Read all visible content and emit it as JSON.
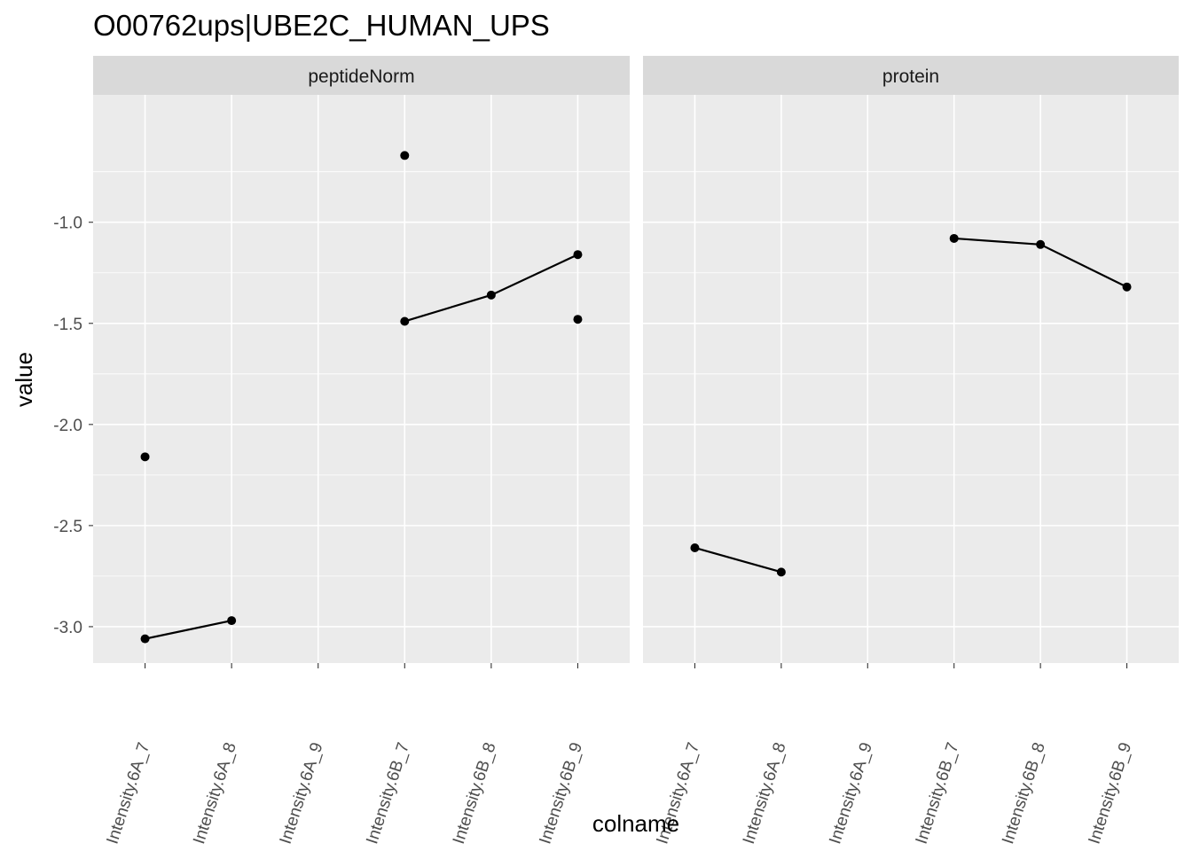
{
  "chart_data": {
    "type": "line",
    "title": "O00762ups|UBE2C_HUMAN_UPS",
    "xlabel": "colname",
    "ylabel": "value",
    "y_ticks": [
      "-1.0",
      "-1.5",
      "-2.0",
      "-2.5",
      "-3.0"
    ],
    "y_tick_values": [
      -1.0,
      -1.5,
      -2.0,
      -2.5,
      -3.0
    ],
    "ylim": [
      -3.18,
      -0.37
    ],
    "categories": [
      "Intensity.6A_7",
      "Intensity.6A_8",
      "Intensity.6A_9",
      "Intensity.6B_7",
      "Intensity.6B_8",
      "Intensity.6B_9"
    ],
    "panels": [
      {
        "strip": "peptideNorm",
        "lines": [
          {
            "points": [
              [
                "Intensity.6A_7",
                -3.06
              ],
              [
                "Intensity.6A_8",
                -2.97
              ]
            ]
          },
          {
            "points": [
              [
                "Intensity.6B_7",
                -1.49
              ],
              [
                "Intensity.6B_8",
                -1.36
              ],
              [
                "Intensity.6B_9",
                -1.16
              ]
            ]
          }
        ],
        "points": [
          [
            "Intensity.6A_7",
            -2.16
          ],
          [
            "Intensity.6B_7",
            -0.67
          ],
          [
            "Intensity.6B_9",
            -1.48
          ]
        ]
      },
      {
        "strip": "protein",
        "lines": [
          {
            "points": [
              [
                "Intensity.6A_7",
                -2.61
              ],
              [
                "Intensity.6A_8",
                -2.73
              ]
            ]
          },
          {
            "points": [
              [
                "Intensity.6B_7",
                -1.08
              ],
              [
                "Intensity.6B_8",
                -1.11
              ],
              [
                "Intensity.6B_9",
                -1.32
              ]
            ]
          }
        ],
        "points": []
      }
    ],
    "grid": true,
    "colors": {
      "panel_bg": "#ebebeb",
      "strip_bg": "#d9d9d9",
      "grid": "#ffffff",
      "data": "#000000",
      "tick_text": "#4d4d4d"
    }
  }
}
